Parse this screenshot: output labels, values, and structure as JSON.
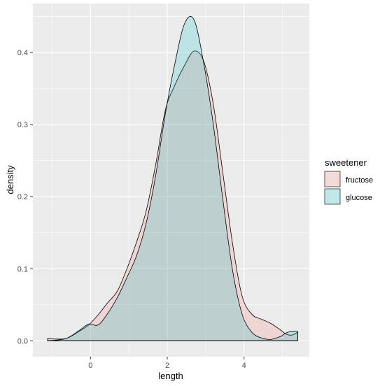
{
  "chart_data": {
    "type": "area",
    "xlabel": "length",
    "ylabel": "density",
    "xlim": [
      -1.5,
      5.7
    ],
    "ylim": [
      -0.022,
      0.468
    ],
    "xticks": [
      0,
      2,
      4
    ],
    "yticks": [
      0.0,
      0.1,
      0.2,
      0.3,
      0.4
    ],
    "xtick_labels": [
      "0",
      "2",
      "4"
    ],
    "ytick_labels": [
      "0.0",
      "0.1",
      "0.2",
      "0.3",
      "0.4"
    ],
    "grid": true,
    "legend": {
      "title": "sweetener",
      "position": "right"
    },
    "series": [
      {
        "name": "fructose",
        "fill": "#F8766D",
        "x": [
          -1.12,
          -0.65,
          -0.3,
          -0.05,
          0.2,
          0.45,
          0.7,
          0.95,
          1.2,
          1.45,
          1.7,
          1.95,
          2.2,
          2.45,
          2.7,
          2.95,
          3.2,
          3.45,
          3.7,
          3.95,
          4.2,
          4.45,
          4.7,
          4.95,
          5.1,
          5.25,
          5.4
        ],
        "y": [
          0.003,
          0.003,
          0.013,
          0.022,
          0.036,
          0.053,
          0.069,
          0.1,
          0.137,
          0.18,
          0.245,
          0.32,
          0.355,
          0.382,
          0.402,
          0.388,
          0.328,
          0.232,
          0.135,
          0.062,
          0.037,
          0.03,
          0.024,
          0.015,
          0.009,
          0.008,
          0.012
        ]
      },
      {
        "name": "glucose",
        "fill": "#00BFC4",
        "x": [
          -1.12,
          -0.65,
          -0.3,
          -0.05,
          0.2,
          0.45,
          0.7,
          0.95,
          1.2,
          1.45,
          1.7,
          1.95,
          2.2,
          2.45,
          2.7,
          2.95,
          3.2,
          3.45,
          3.7,
          3.95,
          4.2,
          4.45,
          4.7,
          4.95,
          5.1,
          5.25,
          5.4
        ],
        "y": [
          0.0,
          0.003,
          0.014,
          0.023,
          0.022,
          0.038,
          0.06,
          0.088,
          0.118,
          0.163,
          0.23,
          0.315,
          0.385,
          0.44,
          0.445,
          0.385,
          0.3,
          0.195,
          0.098,
          0.037,
          0.012,
          0.004,
          0.002,
          0.006,
          0.011,
          0.013,
          0.013
        ]
      }
    ]
  }
}
